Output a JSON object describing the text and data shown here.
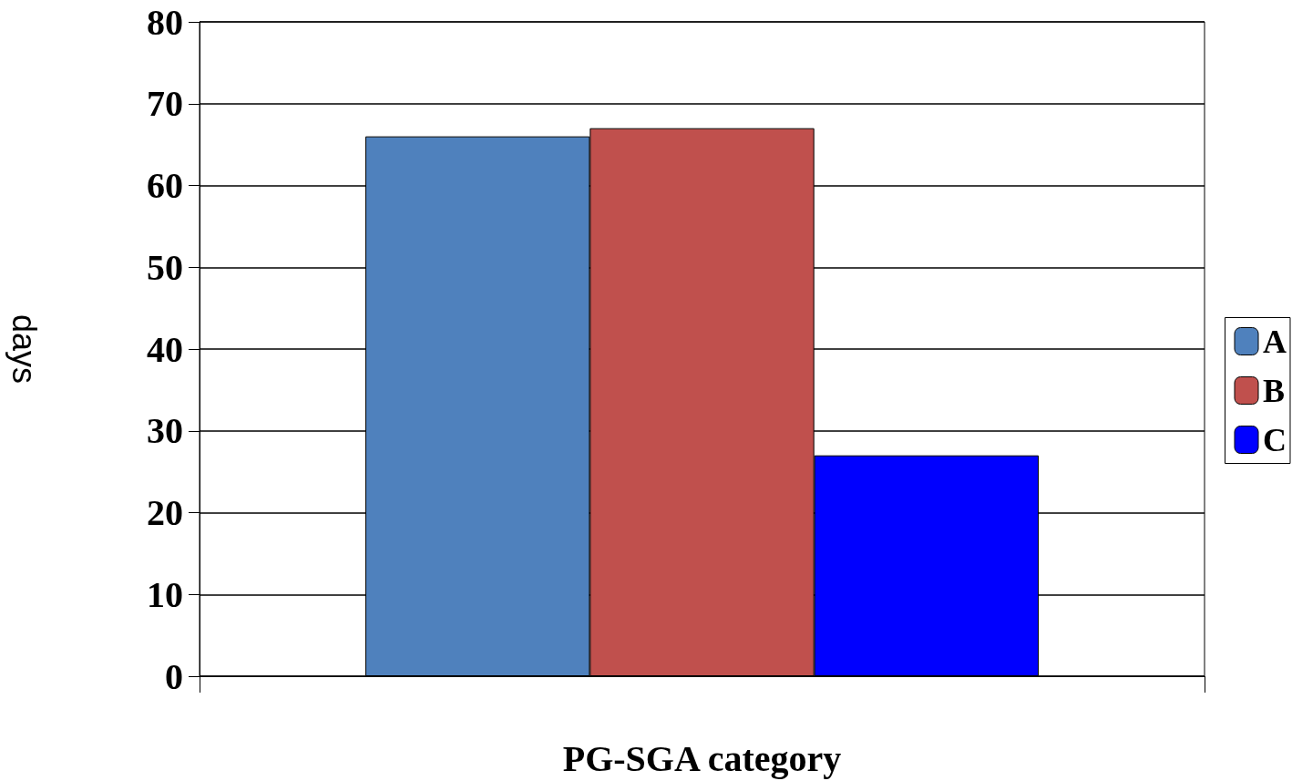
{
  "chart_data": {
    "type": "bar",
    "xlabel": "PG-SGA category",
    "ylabel": "days",
    "categories": [
      null
    ],
    "series": [
      {
        "name": "A",
        "color": "#4f81bd",
        "values": [
          66
        ]
      },
      {
        "name": "B",
        "color": "#c0504d",
        "values": [
          67
        ]
      },
      {
        "name": "C",
        "color": "#0000ff",
        "values": [
          27
        ]
      }
    ],
    "ylim": [
      0,
      80
    ],
    "yticks": [
      0,
      10,
      20,
      30,
      40,
      50,
      60,
      70,
      80
    ],
    "grid": "y",
    "legend": "right"
  }
}
